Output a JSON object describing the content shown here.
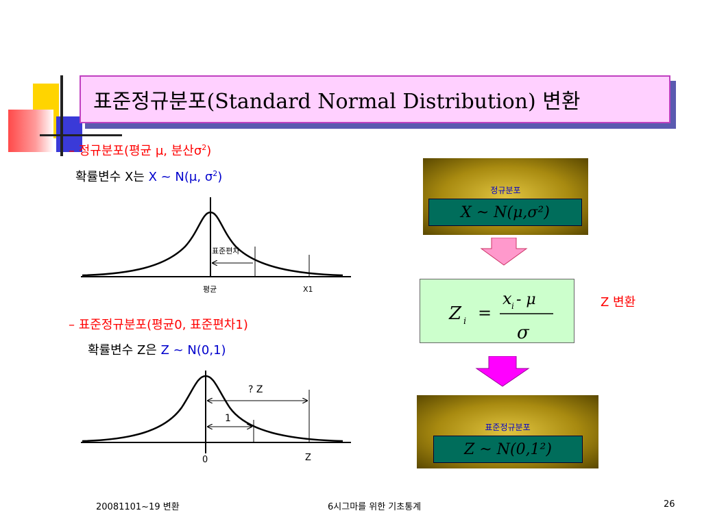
{
  "title": "표준정규분포(Standard Normal Distribution) 변환",
  "section1": {
    "dash": "–",
    "heading_prefix": "정규분포(평균 μ, 분산σ",
    "heading_sup": "2",
    "heading_suffix": ")",
    "line_prefix": "확률변수 X는 ",
    "line_formula": "X ~ N(μ, σ",
    "line_sup": "2",
    "line_suffix": ")"
  },
  "curve1": {
    "label_std": "표준편차",
    "label_mean": "평균",
    "label_x1": "X1"
  },
  "section2": {
    "dash": "–",
    "heading": "표준정규분포(평균0, 표준편차1)",
    "line_prefix": "확률변수 Z은 ",
    "line_formula": "Z ~ N(0,1)"
  },
  "curve2": {
    "label_qz": "?  Z",
    "label_one": "1",
    "label_zero": "0",
    "label_z": "Z"
  },
  "panel1": {
    "label": "정규분포",
    "formula": "X ~ N(μ,σ²)"
  },
  "zbox": {
    "z": "Z",
    "sub": "i",
    "eq": "=",
    "num": "x",
    "num_sub": "i",
    "minus_mu": " - μ",
    "den": "σ"
  },
  "z_transform_label": "Z 변환",
  "panel2": {
    "label": "표준정규분포",
    "formula": "Z ~ N(0,1²)"
  },
  "footer": {
    "left": "20081101~19 변환",
    "center": "6시그마를 위한 기초통계",
    "page": "26"
  },
  "colors": {
    "arrow_top": "#ff99cc",
    "arrow_bottom": "#ff00ff",
    "title_bg": "#ffd0ff",
    "zbox_bg": "#ccffcc"
  }
}
